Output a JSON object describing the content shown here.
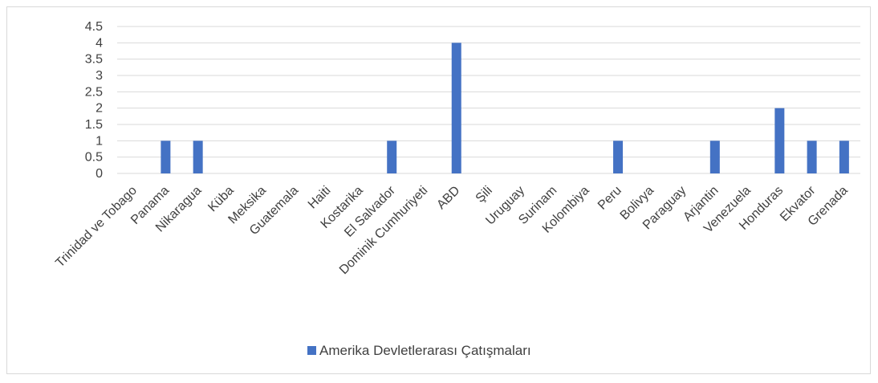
{
  "chart_data": {
    "type": "bar",
    "title": "",
    "xlabel": "",
    "ylabel": "",
    "ylim": [
      0,
      4.5
    ],
    "yticks": [
      "0",
      "0.5",
      "1",
      "1.5",
      "2",
      "2.5",
      "3",
      "3.5",
      "4",
      "4.5"
    ],
    "grid": true,
    "legend_position": "bottom",
    "categories": [
      "Trinidad ve Tobago",
      "Panama",
      "Nikaragua",
      "Küba",
      "Meksika",
      "Guatemala",
      "Haiti",
      "Kostarika",
      "El Salvador",
      "Dominik Cumhuriyeti",
      "ABD",
      "Şili",
      "Uruguay",
      "Surinam",
      "Kolombiya",
      "Peru",
      "Bolivya",
      "Paraguay",
      "Arjantin",
      "Venezuela",
      "Honduras",
      "Ekvator",
      "Grenada"
    ],
    "series": [
      {
        "name": "Amerika Devletlerarası Çatışmaları",
        "color": "#4472c4",
        "values": [
          0,
          1,
          1,
          0,
          0,
          0,
          0,
          0,
          1,
          0,
          4,
          0,
          0,
          0,
          0,
          1,
          0,
          0,
          1,
          0,
          2,
          1,
          1
        ]
      }
    ]
  }
}
